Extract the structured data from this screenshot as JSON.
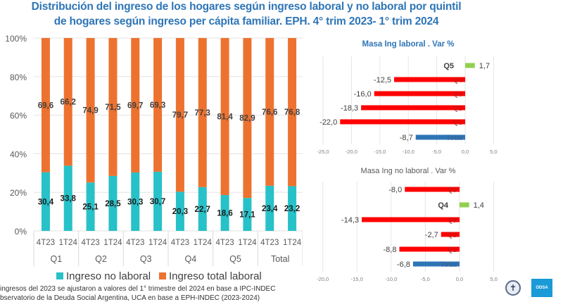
{
  "title": {
    "line1": "Distribución del ingreso de los hogares según ingreso laboral y no laboral por quintil",
    "line2": "de hogares según ingreso per cápita familiar. EPH. 4° trim 2023- 1° trim 2024"
  },
  "chart_data": [
    {
      "type": "bar",
      "stacked": true,
      "percent_stacked": true,
      "title": "",
      "groups": [
        "Q1",
        "Q2",
        "Q3",
        "Q4",
        "Q5",
        "Total"
      ],
      "categories": [
        "4T23",
        "1T24",
        "4T23",
        "1T24",
        "4T23",
        "1T24",
        "4T23",
        "1T24",
        "4T23",
        "1T24",
        "4T23",
        "1T24"
      ],
      "series": [
        {
          "name": "Ingreso no laboral",
          "color": "#27c1c8",
          "values": [
            30.4,
            33.8,
            25.1,
            28.5,
            30.3,
            30.7,
            20.3,
            22.7,
            18.6,
            17.1,
            23.4,
            23.2
          ],
          "labels": [
            "30,4",
            "33,8",
            "25,1",
            "28,5",
            "30,3",
            "30,7",
            "20,3",
            "22,7",
            "18,6",
            "17,1",
            "23,4",
            "23,2"
          ]
        },
        {
          "name": "Ingreso total laboral",
          "color": "#ed7230",
          "values": [
            69.6,
            66.2,
            74.9,
            71.5,
            69.7,
            69.3,
            79.7,
            77.3,
            81.4,
            82.9,
            76.6,
            76.8
          ],
          "labels": [
            "69,6",
            "66,2",
            "74,9",
            "71,5",
            "69,7",
            "69,3",
            "79,7",
            "77,3",
            "81,4",
            "82,9",
            "76,6",
            "76,8"
          ]
        }
      ],
      "xlabel": "",
      "ylabel": "",
      "ylim": [
        0,
        100
      ],
      "yticks": [
        "0%",
        "20%",
        "40%",
        "60%",
        "80%",
        "100%"
      ],
      "grid": true,
      "legend": "bottom"
    },
    {
      "type": "bar",
      "orientation": "horizontal",
      "title": "Masa Ing laboral . Var %",
      "categories": [
        "Q5",
        "Q4",
        "Q3",
        "Q2",
        "Q1",
        "Total"
      ],
      "values": [
        1.7,
        -12.5,
        -16.0,
        -18.3,
        -22.0,
        -8.7
      ],
      "labels": [
        "1,7",
        "-12,5",
        "-16,0",
        "-18,3",
        "-22,0",
        "-8,7"
      ],
      "colors": [
        "#92d050",
        "#ff0000",
        "#ff0000",
        "#ff0000",
        "#ff0000",
        "#2e75b6"
      ],
      "xlim": [
        -25,
        5
      ],
      "xticks": [
        "-25,0",
        "-20,0",
        "-15,0",
        "-10,0",
        "-5,0",
        "0,0",
        "5,0"
      ],
      "xlabel": "",
      "ylabel": "",
      "grid": true
    },
    {
      "type": "bar",
      "orientation": "horizontal",
      "title": "Masa Ing no laboral . Var %",
      "categories": [
        "Q5",
        "Q4",
        "Q3",
        "Q2",
        "Q1",
        "Total"
      ],
      "values": [
        -8.0,
        1.4,
        -14.3,
        -2.7,
        -8.8,
        -6.8
      ],
      "labels": [
        "-8,0",
        "1,4",
        "-14,3",
        "-2,7",
        "-8,8",
        "-6,8"
      ],
      "colors": [
        "#ff0000",
        "#92d050",
        "#ff0000",
        "#ff0000",
        "#ff0000",
        "#2e75b6"
      ],
      "xlim": [
        -20,
        5
      ],
      "xticks": [
        "-20,0",
        "-15,0",
        "-10,0",
        "-5,0",
        "0,0",
        "5,0"
      ],
      "xlabel": "",
      "ylabel": "",
      "grid": true
    }
  ],
  "footnotes": {
    "line1": "ingresos del 2023 se ajustaron a valores del 1°   trimestre del 2024 en base a IPC-INDEC",
    "line2": "bservatorio de la Deuda Social Argentina, UCA en base a EPH-INDEC (2023-2024)"
  },
  "logos": {
    "seal_icon": "✝",
    "odsa_label": "ODSA"
  }
}
